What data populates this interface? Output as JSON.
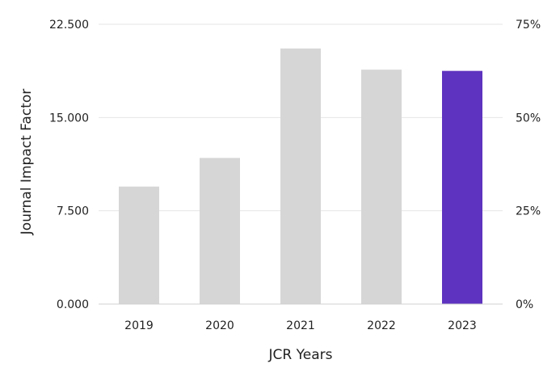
{
  "chart_data": {
    "type": "bar",
    "title": "",
    "xlabel": "JCR Years",
    "ylabel": "Journal Impact Factor",
    "categories": [
      "2019",
      "2020",
      "2021",
      "2022",
      "2023"
    ],
    "values": [
      9.45,
      11.75,
      20.55,
      18.85,
      18.75
    ],
    "ylim": [
      0,
      22.5
    ],
    "y_ticks": [
      {
        "value": 0,
        "label": "0.000"
      },
      {
        "value": 7.5,
        "label": "7.500"
      },
      {
        "value": 15,
        "label": "15.000"
      },
      {
        "value": 22.5,
        "label": "22.500"
      }
    ],
    "y2_ticks": [
      {
        "value": 0,
        "label": "0%"
      },
      {
        "value": 25,
        "label": "25%"
      },
      {
        "value": 50,
        "label": "50%"
      },
      {
        "value": 75,
        "label": "75%"
      }
    ],
    "y2lim": [
      0,
      75
    ],
    "grid": true,
    "highlight_index": 4,
    "colors": {
      "bar": "#d6d6d6",
      "highlight": "#5e33bf"
    }
  }
}
